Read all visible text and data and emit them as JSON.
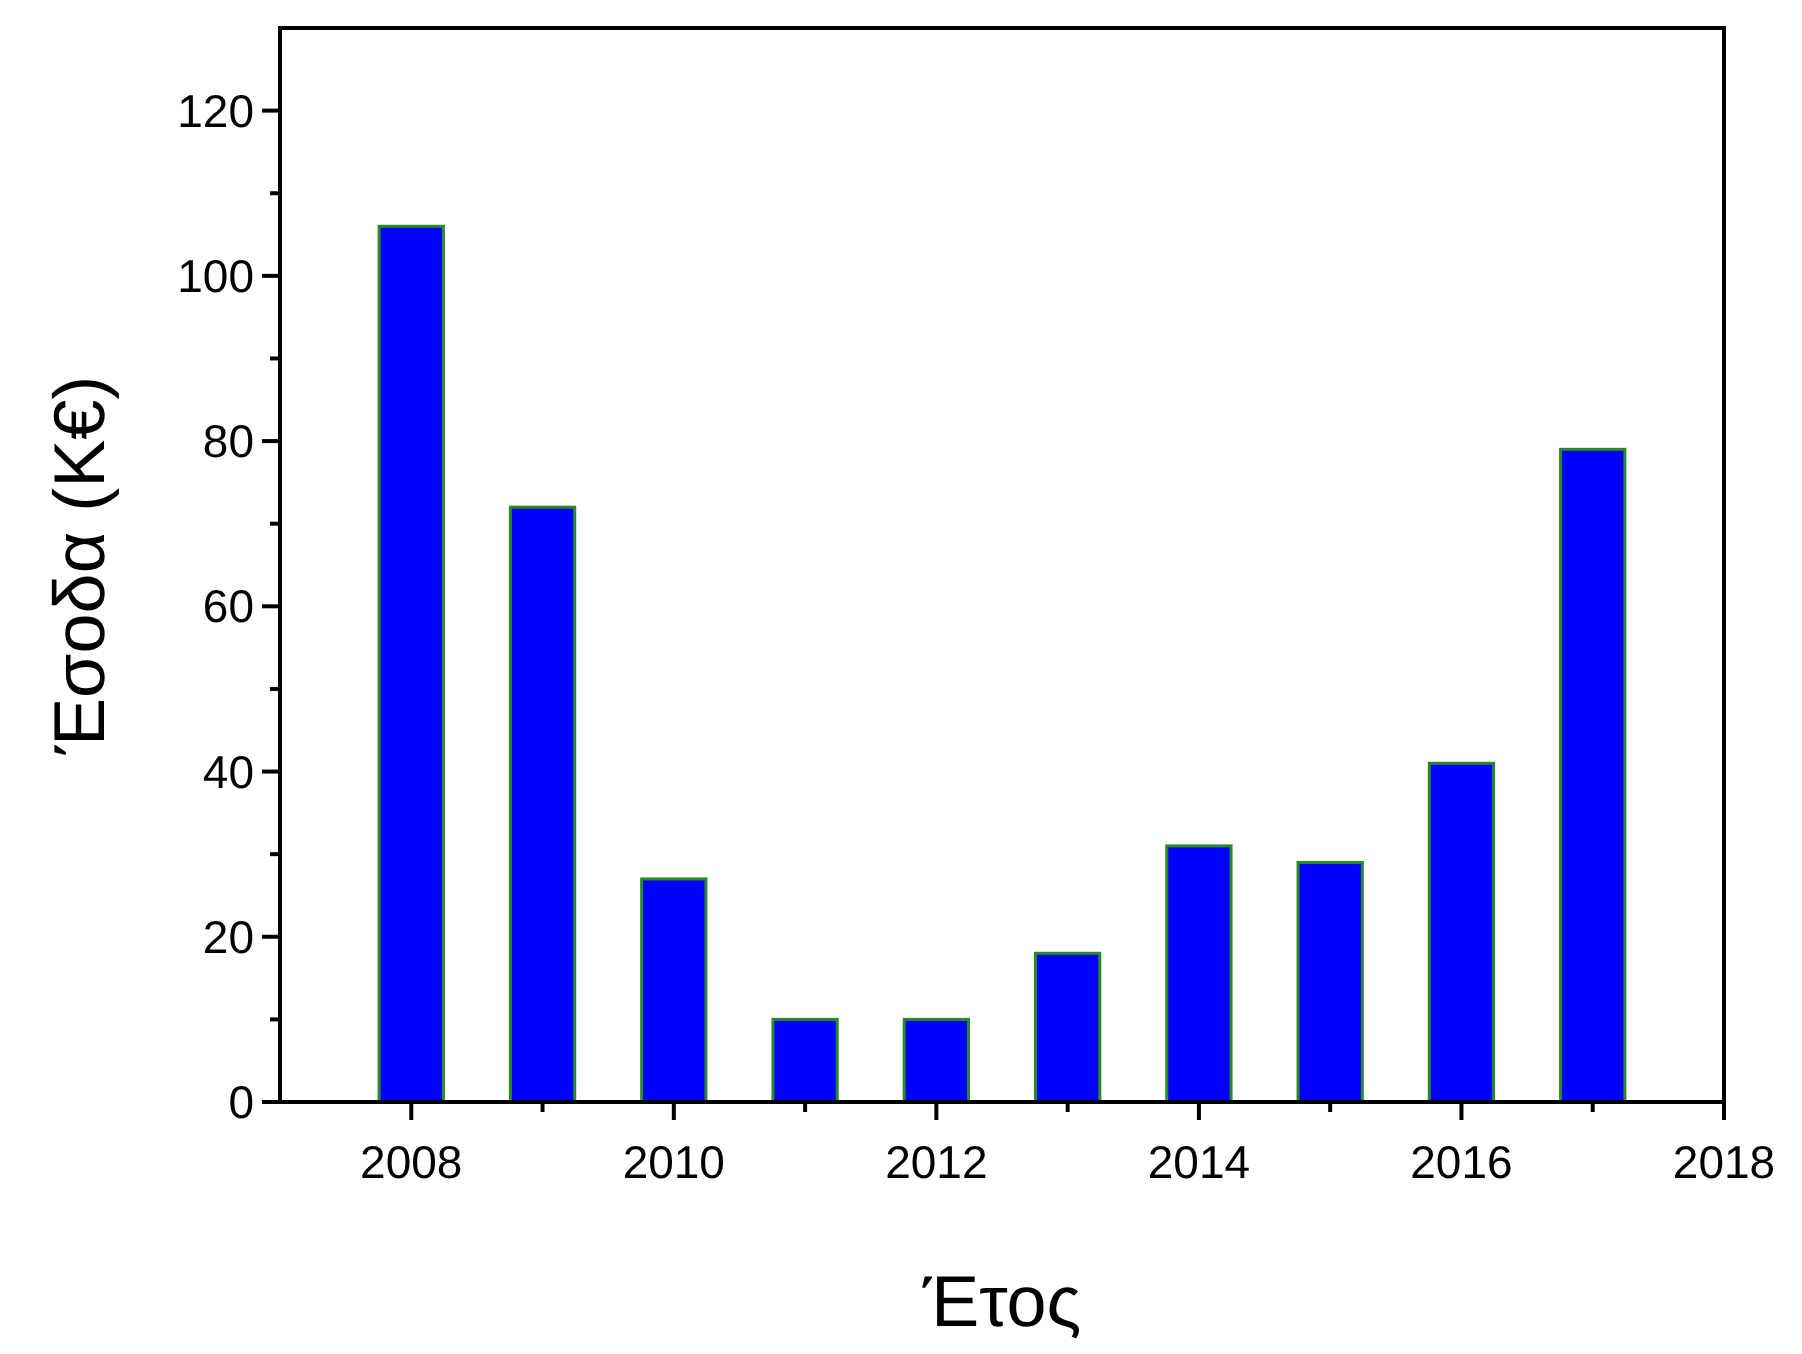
{
  "chart_data": {
    "type": "bar",
    "xlabel": "Έτος",
    "ylabel": "Έσοδα (Κ€)",
    "x": [
      2008,
      2009,
      2010,
      2011,
      2012,
      2013,
      2014,
      2015,
      2016,
      2017
    ],
    "values": [
      106,
      72,
      27,
      10,
      10,
      18,
      31,
      29,
      41,
      79
    ],
    "color": "#0000ff",
    "xlim": [
      2007,
      2018
    ],
    "xticks": [
      2008,
      {
        "value": 2009,
        "label": null
      },
      2010,
      {
        "value": 2011,
        "label": null
      },
      2012,
      {
        "value": 2013,
        "label": null
      },
      2014,
      {
        "value": 2015,
        "label": null
      },
      2016,
      {
        "value": 2017,
        "label": null
      },
      2018
    ],
    "ylim": [
      0,
      130
    ],
    "yticks": [
      0,
      {
        "value": 10,
        "label": null
      },
      20,
      {
        "value": 30,
        "label": null
      },
      40,
      {
        "value": 50,
        "label": null
      },
      60,
      {
        "value": 70,
        "label": null
      },
      80,
      {
        "value": 90,
        "label": null
      },
      100,
      {
        "value": 110,
        "label": null
      },
      120
    ],
    "grid": false
  }
}
